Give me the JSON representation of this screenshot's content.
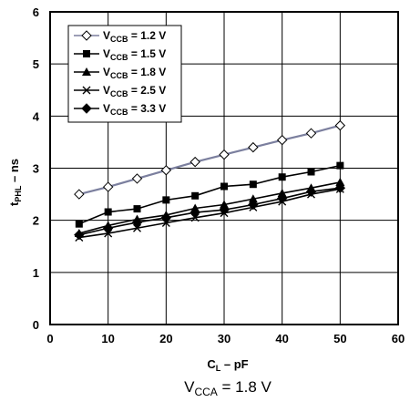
{
  "chart_data": {
    "type": "line",
    "xlabel": {
      "main": "C",
      "sub": "L",
      "rest": " – pF"
    },
    "ylabel": {
      "main": "t",
      "sub": "PHL",
      "rest": " – ns"
    },
    "caption": {
      "main": "V",
      "sub": "CCA",
      "rest": " = 1.8 V"
    },
    "xlim": [
      0,
      60
    ],
    "ylim": [
      0,
      6
    ],
    "xticks": [
      "0",
      "10",
      "20",
      "30",
      "40",
      "50",
      "60"
    ],
    "yticks": [
      "0",
      "1",
      "2",
      "3",
      "4",
      "5",
      "6"
    ],
    "grid": true,
    "legend_position": "top-left",
    "x": [
      5,
      10,
      15,
      20,
      25,
      30,
      35,
      40,
      45,
      50
    ],
    "series": [
      {
        "name": "V",
        "name_sub": "CCB",
        "name_rest": " = 1.2 V",
        "marker": "diamond-open",
        "color": "#7b7f9e",
        "values": [
          2.5,
          2.64,
          2.8,
          2.96,
          3.12,
          3.26,
          3.4,
          3.54,
          3.67,
          3.82
        ]
      },
      {
        "name": "V",
        "name_sub": "CCB",
        "name_rest": " = 1.5 V",
        "marker": "square",
        "color": "#000000",
        "values": [
          1.93,
          2.16,
          2.22,
          2.39,
          2.47,
          2.65,
          2.69,
          2.83,
          2.93,
          3.05
        ]
      },
      {
        "name": "V",
        "name_sub": "CCB",
        "name_rest": " = 1.8 V",
        "marker": "triangle",
        "color": "#000000",
        "values": [
          1.75,
          1.9,
          2.02,
          2.1,
          2.23,
          2.3,
          2.41,
          2.52,
          2.62,
          2.73
        ]
      },
      {
        "name": "V",
        "name_sub": "CCB",
        "name_rest": " = 2.5 V",
        "marker": "x",
        "color": "#000000",
        "values": [
          1.67,
          1.75,
          1.85,
          1.95,
          2.05,
          2.14,
          2.25,
          2.36,
          2.5,
          2.6
        ]
      },
      {
        "name": "V",
        "name_sub": "CCB",
        "name_rest": " = 3.3 V",
        "marker": "diamond",
        "color": "#000000",
        "values": [
          1.72,
          1.85,
          1.96,
          2.05,
          2.15,
          2.2,
          2.3,
          2.42,
          2.55,
          2.62
        ]
      }
    ]
  }
}
